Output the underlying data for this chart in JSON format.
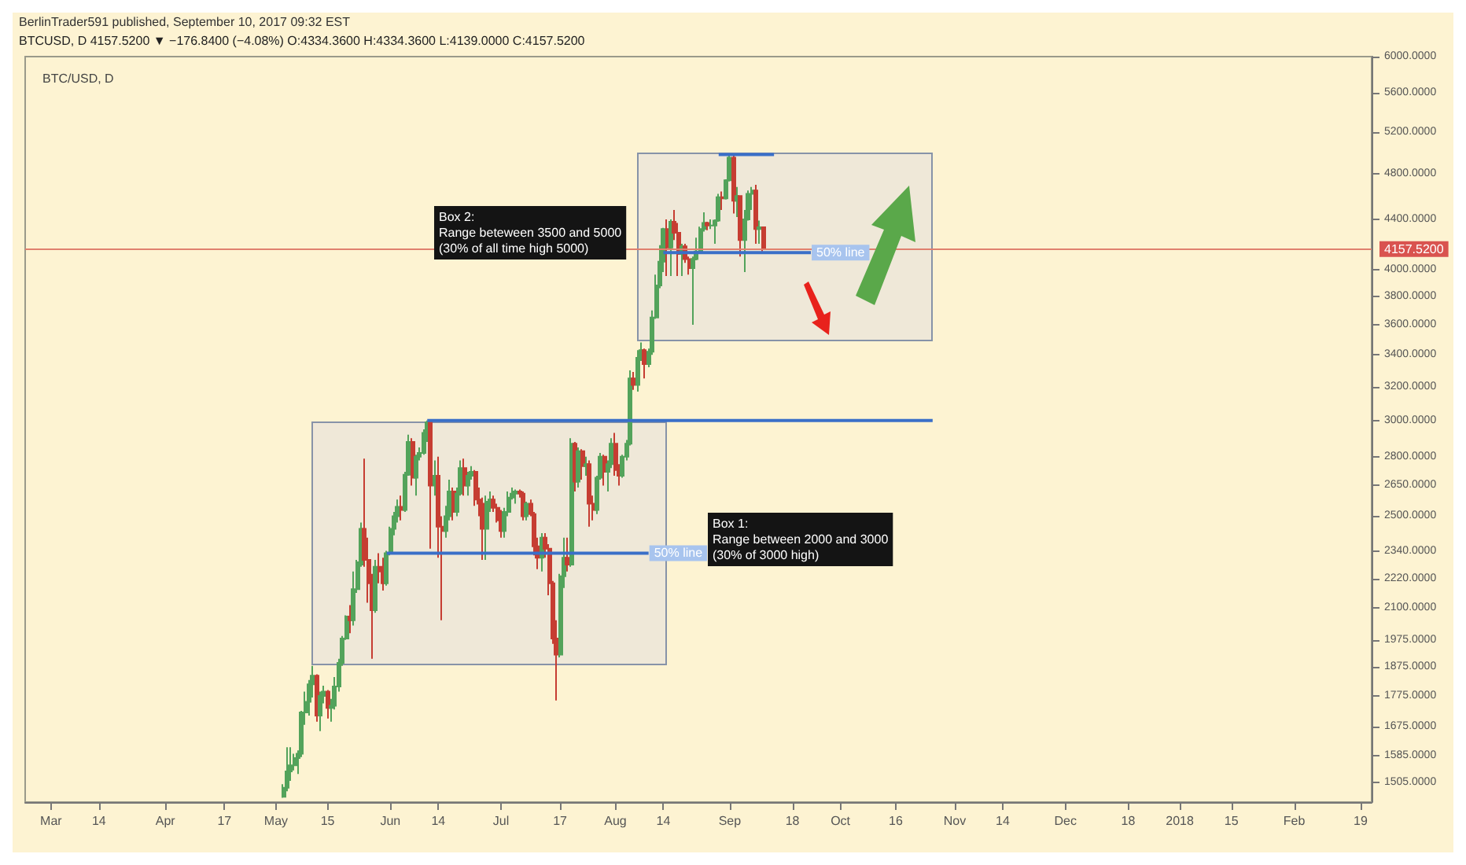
{
  "chart_data": {
    "type": "candlestick",
    "title": "BTC/USD, D",
    "subtitle": "BTCUSD, D 4157.5200 ▼ −176.8400 (−4.08%) O:4334.3600 H:4334.3600 L:4139.0000 C:4157.5200",
    "annotations": [
      "BerlinTrader591 published, September 10, 2017 09:32 EST",
      "Box 2:\nRange beteween 3500 and 5000\n(30% of all time high 5000)",
      "Box 1:\nRange between 2000 and 3000\n(30% of 3000 high)",
      {
        "text": "50% line",
        "x": "2017-08-10",
        "y": 2330
      },
      {
        "text": "50% line",
        "x": "2017-09-23",
        "y": 4130
      }
    ],
    "series": [
      {
        "type": "line",
        "color": "#3a6fc8",
        "x": [
          "2017-06-11",
          "2017-10-26"
        ],
        "values": [
          3000,
          3000
        ]
      },
      {
        "type": "line",
        "color": "#3a6fc8",
        "x": [
          "2017-05-31",
          "2017-08-10"
        ],
        "values": [
          2330,
          2330
        ]
      },
      {
        "type": "line",
        "color": "#3a6fc8",
        "x": [
          "2017-08-14",
          "2017-09-23"
        ],
        "values": [
          4130,
          4130
        ]
      },
      {
        "type": "line",
        "color": "#3a6fc8",
        "x": [
          "2017-08-29",
          "2017-09-13"
        ],
        "values": [
          4980,
          4980
        ]
      }
    ],
    "log": "y",
    "xlim": [
      "2017-02-22",
      "2018-02-22"
    ],
    "xticks": [
      {
        "value": "2017-03-01",
        "label": "Mar"
      },
      {
        "value": "2017-03-14",
        "label": "14"
      },
      {
        "value": "2017-04-01",
        "label": "Apr"
      },
      {
        "value": "2017-04-17",
        "label": "17"
      },
      {
        "value": "2017-05-01",
        "label": "May"
      },
      {
        "value": "2017-05-15",
        "label": "15"
      },
      {
        "value": "2017-06-01",
        "label": "Jun"
      },
      {
        "value": "2017-06-14",
        "label": "14"
      },
      {
        "value": "2017-07-01",
        "label": "Jul"
      },
      {
        "value": "2017-07-17",
        "label": "17"
      },
      {
        "value": "2017-08-01",
        "label": "Aug"
      },
      {
        "value": "2017-08-14",
        "label": "14"
      },
      {
        "value": "2017-09-01",
        "label": "Sep"
      },
      {
        "value": "2017-09-18",
        "label": "18"
      },
      {
        "value": "2017-10-01",
        "label": "Oct"
      },
      {
        "value": "2017-10-16",
        "label": "16"
      },
      {
        "value": "2017-11-01",
        "label": "Nov"
      },
      {
        "value": "2017-11-14",
        "label": "14"
      },
      {
        "value": "2017-12-01",
        "label": "Dec"
      },
      {
        "value": "2017-12-18",
        "label": "18"
      },
      {
        "value": "2018-01-01",
        "label": "2018"
      },
      {
        "value": "2018-01-15",
        "label": "15"
      },
      {
        "value": "2018-02-01",
        "label": "Feb"
      },
      {
        "value": "2018-02-19",
        "label": "19"
      }
    ],
    "ylim": [
      1450,
      6000
    ],
    "yticks": [
      {
        "value": 1505,
        "label": "1505.0000"
      },
      {
        "value": 1585,
        "label": "1585.0000"
      },
      {
        "value": 1675,
        "label": "1675.0000"
      },
      {
        "value": 1775,
        "label": "1775.0000"
      },
      {
        "value": 1875,
        "label": "1875.0000"
      },
      {
        "value": 1975,
        "label": "1975.0000"
      },
      {
        "value": 2100,
        "label": "2100.0000"
      },
      {
        "value": 2220,
        "label": "2220.0000"
      },
      {
        "value": 2340,
        "label": "2340.0000"
      },
      {
        "value": 2500,
        "label": "2500.0000"
      },
      {
        "value": 2650,
        "label": "2650.0000"
      },
      {
        "value": 2800,
        "label": "2800.0000"
      },
      {
        "value": 3000,
        "label": "3000.0000"
      },
      {
        "value": 3200,
        "label": "3200.0000"
      },
      {
        "value": 3400,
        "label": "3400.0000"
      },
      {
        "value": 3600,
        "label": "3600.0000"
      },
      {
        "value": 3800,
        "label": "3800.0000"
      },
      {
        "value": 4000,
        "label": "4000.0000"
      },
      {
        "value": 4400,
        "label": "4400.0000"
      },
      {
        "value": 4800,
        "label": "4800.0000"
      },
      {
        "value": 5200,
        "label": "5200.0000"
      },
      {
        "value": 5600,
        "label": "5600.0000"
      },
      {
        "value": 6000,
        "label": "6000.0000"
      }
    ],
    "ref_lines": [
      {
        "axis": "y",
        "value": 4157.52,
        "label": "4157.5200",
        "color": "#e0806f"
      }
    ],
    "x": [
      "2017-05-03",
      "2017-05-04",
      "2017-05-05",
      "2017-05-06",
      "2017-05-07",
      "2017-05-08",
      "2017-05-09",
      "2017-05-10",
      "2017-05-11",
      "2017-05-12",
      "2017-05-13",
      "2017-05-14",
      "2017-05-15",
      "2017-05-16",
      "2017-05-17",
      "2017-05-18",
      "2017-05-19",
      "2017-05-20",
      "2017-05-21",
      "2017-05-22",
      "2017-05-23",
      "2017-05-24",
      "2017-05-25",
      "2017-05-26",
      "2017-05-27",
      "2017-05-28",
      "2017-05-29",
      "2017-05-30",
      "2017-05-31",
      "2017-06-01",
      "2017-06-02",
      "2017-06-03",
      "2017-06-04",
      "2017-06-05",
      "2017-06-06",
      "2017-06-07",
      "2017-06-08",
      "2017-06-09",
      "2017-06-10",
      "2017-06-11",
      "2017-06-12",
      "2017-06-13",
      "2017-06-14",
      "2017-06-15",
      "2017-06-16",
      "2017-06-17",
      "2017-06-18",
      "2017-06-19",
      "2017-06-20",
      "2017-06-21",
      "2017-06-22",
      "2017-06-23",
      "2017-06-24",
      "2017-06-25",
      "2017-06-26",
      "2017-06-27",
      "2017-06-28",
      "2017-06-29",
      "2017-06-30",
      "2017-07-01",
      "2017-07-02",
      "2017-07-03",
      "2017-07-04",
      "2017-07-05",
      "2017-07-06",
      "2017-07-07",
      "2017-07-08",
      "2017-07-09",
      "2017-07-10",
      "2017-07-11",
      "2017-07-12",
      "2017-07-13",
      "2017-07-14",
      "2017-07-15",
      "2017-07-16",
      "2017-07-17",
      "2017-07-18",
      "2017-07-19",
      "2017-07-20",
      "2017-07-21",
      "2017-07-22",
      "2017-07-23",
      "2017-07-24",
      "2017-07-25",
      "2017-07-26",
      "2017-07-27",
      "2017-07-28",
      "2017-07-29",
      "2017-07-30",
      "2017-07-31",
      "2017-08-01",
      "2017-08-02",
      "2017-08-03",
      "2017-08-04",
      "2017-08-05",
      "2017-08-06",
      "2017-08-07",
      "2017-08-08",
      "2017-08-09",
      "2017-08-10",
      "2017-08-11",
      "2017-08-12",
      "2017-08-13",
      "2017-08-14",
      "2017-08-15",
      "2017-08-16",
      "2017-08-17",
      "2017-08-18",
      "2017-08-19",
      "2017-08-20",
      "2017-08-21",
      "2017-08-22",
      "2017-08-23",
      "2017-08-24",
      "2017-08-25",
      "2017-08-26",
      "2017-08-27",
      "2017-08-28",
      "2017-08-29",
      "2017-08-30",
      "2017-08-31",
      "2017-09-01",
      "2017-09-02",
      "2017-09-03",
      "2017-09-04",
      "2017-09-05",
      "2017-09-06",
      "2017-09-07",
      "2017-09-08",
      "2017-09-09",
      "2017-09-10"
    ],
    "ohlc": [
      [
        1465,
        1500,
        1462,
        1490
      ],
      [
        1490,
        1610,
        1480,
        1537
      ],
      [
        1537,
        1610,
        1510,
        1555
      ],
      [
        1555,
        1590,
        1540,
        1577
      ],
      [
        1577,
        1600,
        1530,
        1590
      ],
      [
        1590,
        1725,
        1580,
        1720
      ],
      [
        1720,
        1790,
        1680,
        1755
      ],
      [
        1755,
        1830,
        1710,
        1815
      ],
      [
        1815,
        1880,
        1770,
        1845
      ],
      [
        1845,
        1850,
        1690,
        1710
      ],
      [
        1710,
        1790,
        1660,
        1775
      ],
      [
        1775,
        1810,
        1750,
        1790
      ],
      [
        1790,
        1795,
        1700,
        1735
      ],
      [
        1735,
        1765,
        1690,
        1742
      ],
      [
        1742,
        1840,
        1730,
        1807
      ],
      [
        1807,
        1905,
        1790,
        1890
      ],
      [
        1890,
        1990,
        1880,
        1980
      ],
      [
        1980,
        2070,
        1975,
        2065
      ],
      [
        2065,
        2110,
        2000,
        2050
      ],
      [
        2050,
        2250,
        2030,
        2175
      ],
      [
        2175,
        2300,
        2160,
        2290
      ],
      [
        2280,
        2470,
        2270,
        2440
      ],
      [
        2440,
        2790,
        2270,
        2300
      ],
      [
        2300,
        2400,
        2120,
        2200
      ],
      [
        2200,
        2240,
        1905,
        2090
      ],
      [
        2090,
        2300,
        2080,
        2270
      ],
      [
        2270,
        2330,
        2200,
        2250
      ],
      [
        2250,
        2310,
        2170,
        2200
      ],
      [
        2200,
        2340,
        2190,
        2330
      ],
      [
        2330,
        2450,
        2320,
        2440
      ],
      [
        2440,
        2520,
        2410,
        2500
      ],
      [
        2500,
        2580,
        2470,
        2545
      ],
      [
        2545,
        2600,
        2480,
        2530
      ],
      [
        2530,
        2720,
        2520,
        2705
      ],
      [
        2705,
        2920,
        2700,
        2880
      ],
      [
        2880,
        2900,
        2650,
        2690
      ],
      [
        2690,
        2810,
        2600,
        2800
      ],
      [
        2800,
        2850,
        2780,
        2820
      ],
      [
        2820,
        2950,
        2810,
        2930
      ],
      [
        2930,
        3000,
        2880,
        2990
      ],
      [
        2990,
        2995,
        2350,
        2650
      ],
      [
        2650,
        2780,
        2600,
        2700
      ],
      [
        2700,
        2800,
        2310,
        2450
      ],
      [
        2450,
        2500,
        2050,
        2430
      ],
      [
        2430,
        2550,
        2400,
        2500
      ],
      [
        2500,
        2680,
        2480,
        2620
      ],
      [
        2620,
        2640,
        2480,
        2520
      ],
      [
        2520,
        2640,
        2500,
        2610
      ],
      [
        2610,
        2780,
        2600,
        2740
      ],
      [
        2740,
        2790,
        2600,
        2650
      ],
      [
        2650,
        2720,
        2600,
        2700
      ],
      [
        2700,
        2750,
        2680,
        2720
      ],
      [
        2720,
        2730,
        2550,
        2580
      ],
      [
        2580,
        2640,
        2500,
        2560
      ],
      [
        2560,
        2590,
        2300,
        2440
      ],
      [
        2440,
        2600,
        2300,
        2570
      ],
      [
        2570,
        2620,
        2520,
        2580
      ],
      [
        2580,
        2600,
        2520,
        2540
      ],
      [
        2540,
        2560,
        2470,
        2480
      ],
      [
        2480,
        2530,
        2400,
        2430
      ],
      [
        2430,
        2540,
        2400,
        2520
      ],
      [
        2520,
        2620,
        2500,
        2590
      ],
      [
        2590,
        2640,
        2580,
        2610
      ],
      [
        2610,
        2630,
        2560,
        2620
      ],
      [
        2620,
        2630,
        2590,
        2610
      ],
      [
        2610,
        2620,
        2480,
        2500
      ],
      [
        2500,
        2570,
        2480,
        2560
      ],
      [
        2560,
        2580,
        2500,
        2510
      ],
      [
        2510,
        2520,
        2320,
        2360
      ],
      [
        2360,
        2400,
        2260,
        2310
      ],
      [
        2310,
        2420,
        2250,
        2400
      ],
      [
        2400,
        2420,
        2310,
        2350
      ],
      [
        2350,
        2370,
        2150,
        2200
      ],
      [
        2200,
        2210,
        1960,
        1980
      ],
      [
        1980,
        2050,
        1760,
        1920
      ],
      [
        1920,
        2240,
        1910,
        2230
      ],
      [
        2230,
        2400,
        2180,
        2310
      ],
      [
        2310,
        2400,
        2250,
        2280
      ],
      [
        2280,
        2900,
        2270,
        2870
      ],
      [
        2870,
        2880,
        2620,
        2670
      ],
      [
        2670,
        2850,
        2640,
        2830
      ],
      [
        2830,
        2840,
        2680,
        2750
      ],
      [
        2750,
        2800,
        2700,
        2760
      ],
      [
        2760,
        2780,
        2450,
        2560
      ],
      [
        2560,
        2600,
        2480,
        2530
      ],
      [
        2530,
        2700,
        2510,
        2690
      ],
      [
        2690,
        2820,
        2680,
        2800
      ],
      [
        2800,
        2810,
        2650,
        2720
      ],
      [
        2720,
        2780,
        2620,
        2760
      ],
      [
        2760,
        2900,
        2740,
        2870
      ],
      [
        2870,
        2930,
        2700,
        2730
      ],
      [
        2730,
        2760,
        2650,
        2700
      ],
      [
        2700,
        2810,
        2690,
        2800
      ],
      [
        2800,
        2890,
        2780,
        2870
      ],
      [
        2870,
        3300,
        2860,
        3250
      ],
      [
        3250,
        3290,
        3180,
        3210
      ],
      [
        3210,
        3430,
        3170,
        3380
      ],
      [
        3380,
        3480,
        3360,
        3430
      ],
      [
        3430,
        3440,
        3250,
        3340
      ],
      [
        3340,
        3440,
        3320,
        3420
      ],
      [
        3420,
        3700,
        3400,
        3650
      ],
      [
        3650,
        3960,
        3640,
        3880
      ],
      [
        3880,
        4190,
        3860,
        4060
      ],
      [
        4060,
        4330,
        3980,
        4320
      ],
      [
        4320,
        4400,
        3950,
        4170
      ],
      [
        4170,
        4400,
        3950,
        4380
      ],
      [
        4380,
        4480,
        4230,
        4290
      ],
      [
        4290,
        4370,
        3950,
        4120
      ],
      [
        4120,
        4200,
        3950,
        4180
      ],
      [
        4180,
        4200,
        4050,
        4080
      ],
      [
        4080,
        4100,
        3960,
        4010
      ],
      [
        4010,
        4100,
        3600,
        4080
      ],
      [
        4080,
        4250,
        4070,
        4140
      ],
      [
        4140,
        4340,
        4130,
        4320
      ],
      [
        4320,
        4460,
        4300,
        4370
      ],
      [
        4370,
        4380,
        4310,
        4350
      ],
      [
        4350,
        4400,
        4320,
        4350
      ],
      [
        4350,
        4400,
        4200,
        4390
      ],
      [
        4390,
        4620,
        4380,
        4590
      ],
      [
        4590,
        4640,
        4480,
        4580
      ],
      [
        4580,
        4750,
        4570,
        4740
      ],
      [
        4740,
        4980,
        4730,
        4950
      ],
      [
        4950,
        4980,
        4450,
        4560
      ],
      [
        4560,
        4680,
        4420,
        4600
      ],
      [
        4600,
        4600,
        4100,
        4230
      ],
      [
        4230,
        4480,
        3980,
        4400
      ],
      [
        4400,
        4650,
        4390,
        4620
      ],
      [
        4620,
        4680,
        4480,
        4650
      ],
      [
        4650,
        4700,
        4200,
        4320
      ],
      [
        4320,
        4390,
        4200,
        4334.36
      ],
      [
        4334.36,
        4334.36,
        4139,
        4157.52
      ]
    ]
  }
}
